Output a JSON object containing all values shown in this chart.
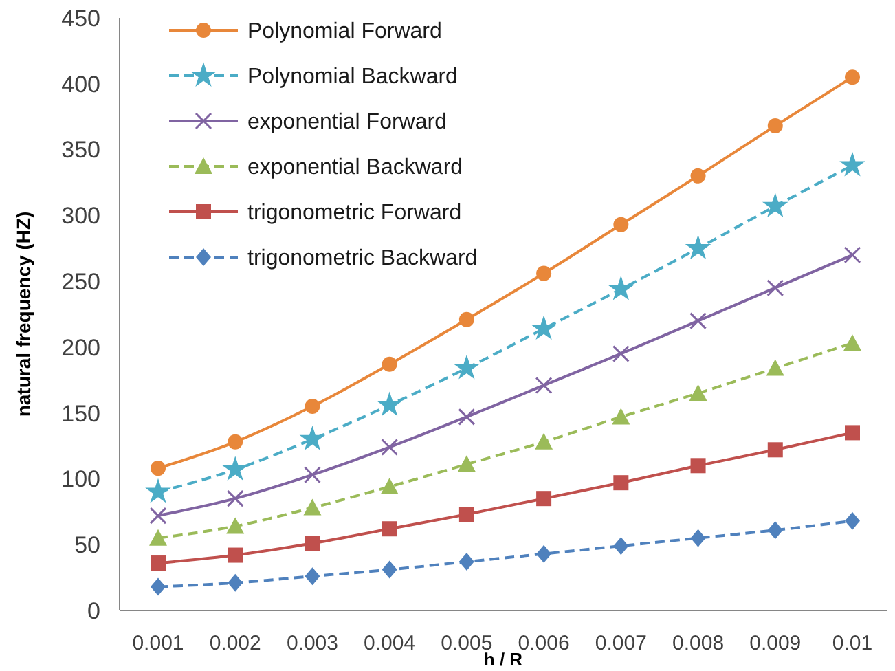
{
  "chart_data": {
    "type": "line",
    "xlabel": "h / R",
    "ylabel": "natural frequency (HZ)",
    "categories": [
      "0.001",
      "0.002",
      "0.003",
      "0.004",
      "0.005",
      "0.006",
      "0.007",
      "0.008",
      "0.009",
      "0.01"
    ],
    "ylim": [
      0,
      450
    ],
    "yticks": [
      0,
      50,
      100,
      150,
      200,
      250,
      300,
      350,
      400,
      450
    ],
    "grid": false,
    "legend": "top left",
    "series": [
      {
        "name": "Polynomial Forward",
        "color": "#e8873a",
        "marker": "circle",
        "line_style": "solid",
        "values": [
          108,
          128,
          155,
          187,
          221,
          256,
          293,
          330,
          368,
          405
        ]
      },
      {
        "name": "Polynomial Backward",
        "color": "#4bacc6",
        "marker": "star",
        "line_style": "dashed",
        "values": [
          90,
          107,
          130,
          156,
          184,
          214,
          244,
          275,
          307,
          338
        ]
      },
      {
        "name": "exponential Forward",
        "color": "#8064a2",
        "marker": "cross",
        "line_style": "solid",
        "values": [
          72,
          85,
          103,
          124,
          147,
          171,
          195,
          220,
          245,
          270
        ]
      },
      {
        "name": "exponential Backward",
        "color": "#9bbb59",
        "marker": "triangle",
        "line_style": "dashed",
        "values": [
          55,
          64,
          78,
          94,
          111,
          128,
          147,
          165,
          184,
          203
        ]
      },
      {
        "name": "trigonometric Forward",
        "color": "#c0504d",
        "marker": "square",
        "line_style": "solid",
        "values": [
          36,
          42,
          51,
          62,
          73,
          85,
          97,
          110,
          122,
          135
        ]
      },
      {
        "name": "trigonometric Backward",
        "color": "#4f81bd",
        "marker": "diamond",
        "line_style": "dashed",
        "values": [
          18,
          21,
          26,
          31,
          37,
          43,
          49,
          55,
          61,
          68
        ]
      }
    ]
  }
}
